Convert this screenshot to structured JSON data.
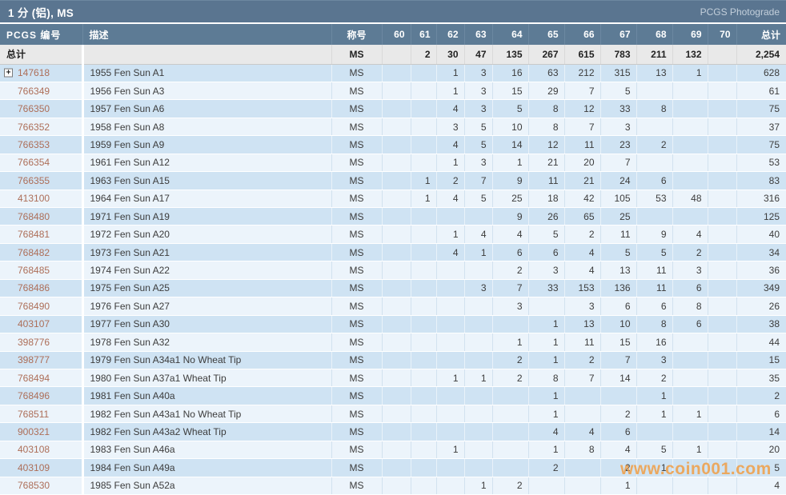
{
  "title_bar": {
    "title": "1 分 (铝), MS",
    "right_link": "PCGS Photograde"
  },
  "icons": {
    "expand_glyph": "+"
  },
  "watermark": "www.coin001.com",
  "colors": {
    "titlebar_bg": "#5a7590",
    "header_bg": "#5d7b95",
    "row_odd_bg": "#cfe3f3",
    "row_even_bg": "#ecf4fb",
    "totals_bg": "#e9e9e9",
    "pcgs_number_color": "#ad6e58",
    "watermark_color": "#f09b3e"
  },
  "table": {
    "col_pcgs_label": "PCGS 编号",
    "col_desc_label": "描述",
    "col_designation_label": "称号",
    "grade_columns": [
      "60",
      "61",
      "62",
      "63",
      "64",
      "65",
      "66",
      "67",
      "68",
      "69",
      "70"
    ],
    "col_total_label": "总计",
    "totals_row": {
      "label": "总计",
      "designation": "MS",
      "values": [
        "",
        "2",
        "30",
        "47",
        "135",
        "267",
        "615",
        "783",
        "211",
        "132",
        "",
        "2,254"
      ]
    },
    "rows": [
      {
        "pcgs_no": "147618",
        "expandable": true,
        "desc": "1955 Fen Sun A1",
        "designation": "MS",
        "values": [
          "",
          "",
          "1",
          "3",
          "16",
          "63",
          "212",
          "315",
          "13",
          "1",
          "",
          "628"
        ]
      },
      {
        "pcgs_no": "766349",
        "expandable": false,
        "desc": "1956 Fen Sun A3",
        "designation": "MS",
        "values": [
          "",
          "",
          "1",
          "3",
          "15",
          "29",
          "7",
          "5",
          "",
          "",
          "",
          "61"
        ]
      },
      {
        "pcgs_no": "766350",
        "expandable": false,
        "desc": "1957 Fen Sun A6",
        "designation": "MS",
        "values": [
          "",
          "",
          "4",
          "3",
          "5",
          "8",
          "12",
          "33",
          "8",
          "",
          "",
          "75"
        ]
      },
      {
        "pcgs_no": "766352",
        "expandable": false,
        "desc": "1958 Fen Sun A8",
        "designation": "MS",
        "values": [
          "",
          "",
          "3",
          "5",
          "10",
          "8",
          "7",
          "3",
          "",
          "",
          "",
          "37"
        ]
      },
      {
        "pcgs_no": "766353",
        "expandable": false,
        "desc": "1959 Fen Sun A9",
        "designation": "MS",
        "values": [
          "",
          "",
          "4",
          "5",
          "14",
          "12",
          "11",
          "23",
          "2",
          "",
          "",
          "75"
        ]
      },
      {
        "pcgs_no": "766354",
        "expandable": false,
        "desc": "1961 Fen Sun A12",
        "designation": "MS",
        "values": [
          "",
          "",
          "1",
          "3",
          "1",
          "21",
          "20",
          "7",
          "",
          "",
          "",
          "53"
        ]
      },
      {
        "pcgs_no": "766355",
        "expandable": false,
        "desc": "1963 Fen Sun A15",
        "designation": "MS",
        "values": [
          "",
          "1",
          "2",
          "7",
          "9",
          "11",
          "21",
          "24",
          "6",
          "",
          "",
          "83"
        ]
      },
      {
        "pcgs_no": "413100",
        "expandable": false,
        "desc": "1964 Fen Sun A17",
        "designation": "MS",
        "values": [
          "",
          "1",
          "4",
          "5",
          "25",
          "18",
          "42",
          "105",
          "53",
          "48",
          "",
          "316"
        ]
      },
      {
        "pcgs_no": "768480",
        "expandable": false,
        "desc": "1971 Fen Sun A19",
        "designation": "MS",
        "values": [
          "",
          "",
          "",
          "",
          "9",
          "26",
          "65",
          "25",
          "",
          "",
          "",
          "125"
        ]
      },
      {
        "pcgs_no": "768481",
        "expandable": false,
        "desc": "1972 Fen Sun A20",
        "designation": "MS",
        "values": [
          "",
          "",
          "1",
          "4",
          "4",
          "5",
          "2",
          "11",
          "9",
          "4",
          "",
          "40"
        ]
      },
      {
        "pcgs_no": "768482",
        "expandable": false,
        "desc": "1973 Fen Sun A21",
        "designation": "MS",
        "values": [
          "",
          "",
          "4",
          "1",
          "6",
          "6",
          "4",
          "5",
          "5",
          "2",
          "",
          "34"
        ]
      },
      {
        "pcgs_no": "768485",
        "expandable": false,
        "desc": "1974 Fen Sun A22",
        "designation": "MS",
        "values": [
          "",
          "",
          "",
          "",
          "2",
          "3",
          "4",
          "13",
          "11",
          "3",
          "",
          "36"
        ]
      },
      {
        "pcgs_no": "768486",
        "expandable": false,
        "desc": "1975 Fen Sun A25",
        "designation": "MS",
        "values": [
          "",
          "",
          "",
          "3",
          "7",
          "33",
          "153",
          "136",
          "11",
          "6",
          "",
          "349"
        ]
      },
      {
        "pcgs_no": "768490",
        "expandable": false,
        "desc": "1976 Fen Sun A27",
        "designation": "MS",
        "values": [
          "",
          "",
          "",
          "",
          "3",
          "",
          "3",
          "6",
          "6",
          "8",
          "",
          "26"
        ]
      },
      {
        "pcgs_no": "403107",
        "expandable": false,
        "desc": "1977 Fen Sun A30",
        "designation": "MS",
        "values": [
          "",
          "",
          "",
          "",
          "",
          "1",
          "13",
          "10",
          "8",
          "6",
          "",
          "38"
        ]
      },
      {
        "pcgs_no": "398776",
        "expandable": false,
        "desc": "1978 Fen Sun A32",
        "designation": "MS",
        "values": [
          "",
          "",
          "",
          "",
          "1",
          "1",
          "11",
          "15",
          "16",
          "",
          "",
          "44"
        ]
      },
      {
        "pcgs_no": "398777",
        "expandable": false,
        "desc": "1979 Fen Sun A34a1 No Wheat Tip",
        "designation": "MS",
        "values": [
          "",
          "",
          "",
          "",
          "2",
          "1",
          "2",
          "7",
          "3",
          "",
          "",
          "15"
        ]
      },
      {
        "pcgs_no": "768494",
        "expandable": false,
        "desc": "1980 Fen Sun A37a1 Wheat Tip",
        "designation": "MS",
        "values": [
          "",
          "",
          "1",
          "1",
          "2",
          "8",
          "7",
          "14",
          "2",
          "",
          "",
          "35"
        ]
      },
      {
        "pcgs_no": "768496",
        "expandable": false,
        "desc": "1981 Fen Sun A40a",
        "designation": "MS",
        "values": [
          "",
          "",
          "",
          "",
          "",
          "1",
          "",
          "",
          "1",
          "",
          "",
          "2"
        ]
      },
      {
        "pcgs_no": "768511",
        "expandable": false,
        "desc": "1982 Fen Sun A43a1 No Wheat Tip",
        "designation": "MS",
        "values": [
          "",
          "",
          "",
          "",
          "",
          "1",
          "",
          "2",
          "1",
          "1",
          "",
          "6"
        ]
      },
      {
        "pcgs_no": "900321",
        "expandable": false,
        "desc": "1982 Fen Sun A43a2 Wheat Tip",
        "designation": "MS",
        "values": [
          "",
          "",
          "",
          "",
          "",
          "4",
          "4",
          "6",
          "",
          "",
          "",
          "14"
        ]
      },
      {
        "pcgs_no": "403108",
        "expandable": false,
        "desc": "1983 Fen Sun A46a",
        "designation": "MS",
        "values": [
          "",
          "",
          "1",
          "",
          "",
          "1",
          "8",
          "4",
          "5",
          "1",
          "",
          "20"
        ]
      },
      {
        "pcgs_no": "403109",
        "expandable": false,
        "desc": "1984 Fen Sun A49a",
        "designation": "MS",
        "values": [
          "",
          "",
          "",
          "",
          "",
          "2",
          "",
          "2",
          "1",
          "",
          "",
          "5"
        ]
      },
      {
        "pcgs_no": "768530",
        "expandable": false,
        "desc": "1985 Fen Sun A52a",
        "designation": "MS",
        "values": [
          "",
          "",
          "",
          "1",
          "2",
          "",
          "",
          "1",
          "",
          "",
          "",
          "4"
        ]
      }
    ]
  }
}
